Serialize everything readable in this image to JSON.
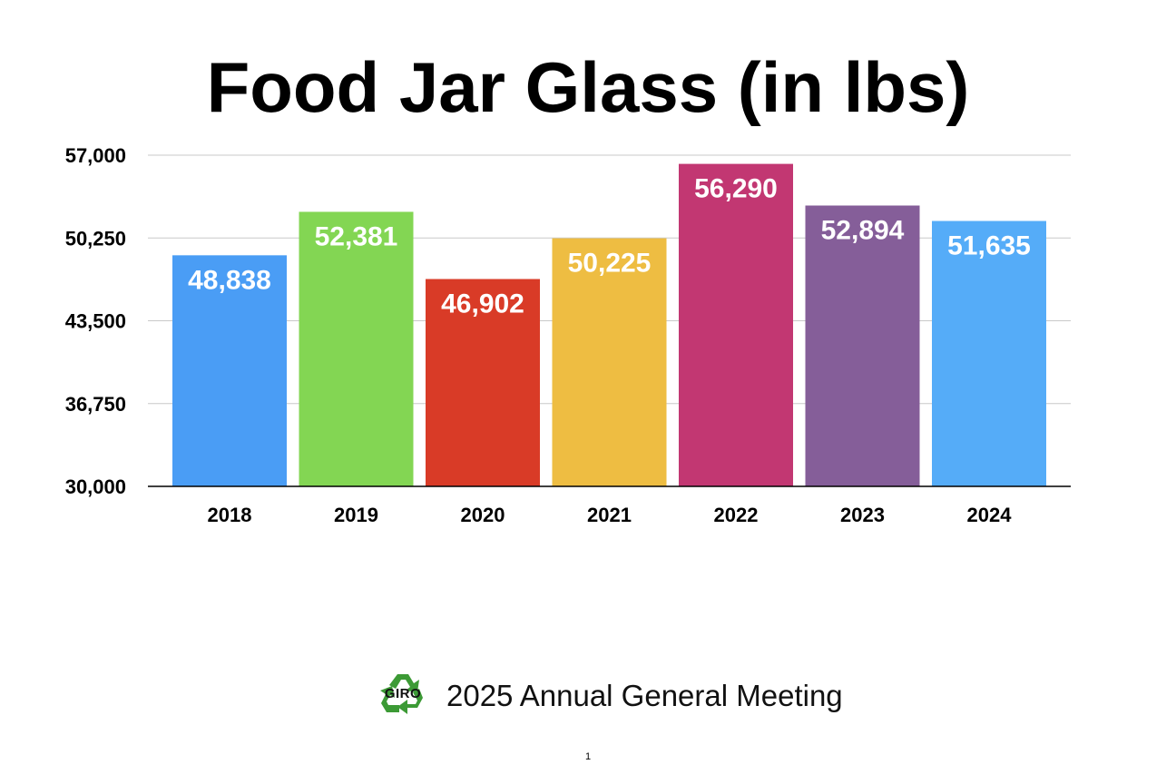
{
  "slide": {
    "title": "Food Jar Glass (in lbs)",
    "footer_text": "2025 Annual General Meeting",
    "logo_text": "GIRO",
    "page_number": "1"
  },
  "chart_data": {
    "type": "bar",
    "title": "Food Jar Glass (in lbs)",
    "xlabel": "",
    "ylabel": "",
    "categories": [
      "2018",
      "2019",
      "2020",
      "2021",
      "2022",
      "2023",
      "2024"
    ],
    "values": [
      48838,
      52381,
      46902,
      50225,
      56290,
      52894,
      51635
    ],
    "value_labels": [
      "48,838",
      "52,381",
      "46,902",
      "50,225",
      "56,290",
      "52,894",
      "51,635"
    ],
    "colors": [
      "#4A9DF5",
      "#83D653",
      "#D93B27",
      "#EEBD42",
      "#C23772",
      "#855E99",
      "#55ACF8"
    ],
    "ylim": [
      30000,
      57000
    ],
    "yticks": [
      30000,
      36750,
      43500,
      50250,
      57000
    ],
    "ytick_labels": [
      "30,000",
      "36,750",
      "43,500",
      "50,250",
      "57,000"
    ],
    "grid": true,
    "legend": "none"
  },
  "colors": {
    "grid": "#C8C8C8",
    "axis": "#000000",
    "logo_green": "#3C9A35"
  }
}
